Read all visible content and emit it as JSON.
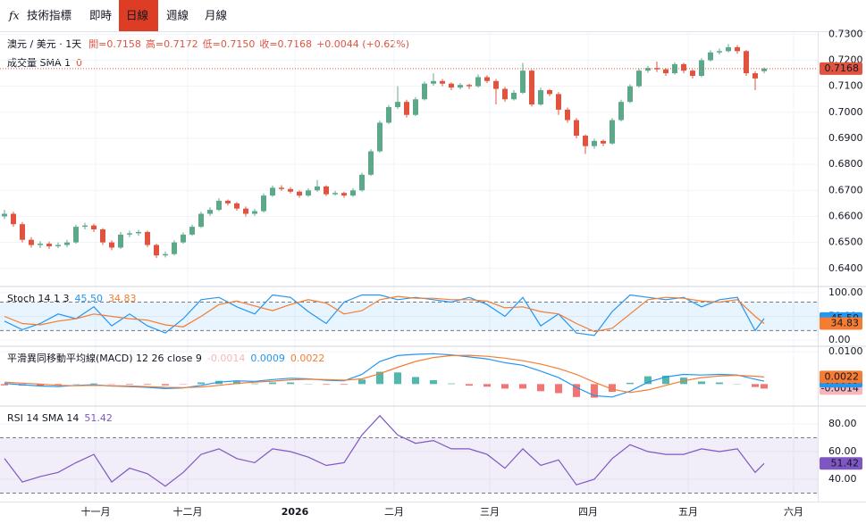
{
  "toolbar": {
    "icon": "fx",
    "items": [
      "技術指標",
      "即時",
      "日線",
      "週線",
      "月線"
    ],
    "active": 2
  },
  "chart_data": [
    {
      "type": "candlestick",
      "title": "澳元 / 美元 · 1天",
      "legend_items": [
        "開=0.7158",
        "高=0.7172",
        "低=0.7150",
        "收=0.7168",
        "+0.0044 (+0.62%)"
      ],
      "volume_legend": [
        "成交量 SMA 1",
        "0"
      ],
      "up_color": "#5ea88a",
      "down_color": "#e0533f",
      "grid": true,
      "ylim": [
        0.6334,
        0.7308
      ],
      "yticks": [
        {
          "value": 0.73,
          "label": "0.7300"
        },
        {
          "value": 0.72,
          "label": "0.7200"
        },
        {
          "value": 0.71,
          "label": "0.7100"
        },
        {
          "value": 0.7,
          "label": "0.7000"
        },
        {
          "value": 0.69,
          "label": "0.6900"
        },
        {
          "value": 0.68,
          "label": "0.6800"
        },
        {
          "value": 0.67,
          "label": "0.6700"
        },
        {
          "value": 0.66,
          "label": "0.6600"
        },
        {
          "value": 0.65,
          "label": "0.6500"
        },
        {
          "value": 0.64,
          "label": "0.6400"
        }
      ],
      "xlim": [
        -0.5,
        91
      ],
      "xticks": [
        {
          "value": 10.2,
          "label": "十一月"
        },
        {
          "value": 20.5,
          "label": "十二月"
        },
        {
          "value": 32.5,
          "label": "2026"
        },
        {
          "value": 43.6,
          "label": "二月"
        },
        {
          "value": 54.3,
          "label": "三月"
        },
        {
          "value": 65.3,
          "label": "四月"
        },
        {
          "value": 76.5,
          "label": "五月"
        },
        {
          "value": 88.3,
          "label": "六月"
        }
      ],
      "last_label": "0.7168",
      "ohlc": [
        [
          0.66,
          0.6625,
          0.659,
          0.661
        ],
        [
          0.661,
          0.6618,
          0.656,
          0.657
        ],
        [
          0.657,
          0.6578,
          0.65,
          0.651
        ],
        [
          0.651,
          0.652,
          0.648,
          0.649
        ],
        [
          0.649,
          0.6505,
          0.6478,
          0.6495
        ],
        [
          0.6495,
          0.6503,
          0.6475,
          0.6485
        ],
        [
          0.6485,
          0.65,
          0.6478,
          0.649
        ],
        [
          0.649,
          0.651,
          0.6482,
          0.65
        ],
        [
          0.65,
          0.6568,
          0.6495,
          0.656
        ],
        [
          0.656,
          0.6575,
          0.655,
          0.6565
        ],
        [
          0.6565,
          0.6572,
          0.654,
          0.655
        ],
        [
          0.655,
          0.6555,
          0.649,
          0.65
        ],
        [
          0.65,
          0.6508,
          0.647,
          0.648
        ],
        [
          0.648,
          0.654,
          0.6475,
          0.653
        ],
        [
          0.653,
          0.6545,
          0.652,
          0.6535
        ],
        [
          0.6535,
          0.6548,
          0.6525,
          0.654
        ],
        [
          0.654,
          0.6545,
          0.6482,
          0.649
        ],
        [
          0.649,
          0.6495,
          0.644,
          0.645
        ],
        [
          0.645,
          0.6465,
          0.6442,
          0.6455
        ],
        [
          0.6455,
          0.6508,
          0.645,
          0.65
        ],
        [
          0.65,
          0.6538,
          0.6495,
          0.653
        ],
        [
          0.653,
          0.6568,
          0.6525,
          0.656
        ],
        [
          0.656,
          0.6618,
          0.6555,
          0.661
        ],
        [
          0.661,
          0.6635,
          0.6602,
          0.6625
        ],
        [
          0.6625,
          0.667,
          0.662,
          0.666
        ],
        [
          0.666,
          0.6665,
          0.6642,
          0.665
        ],
        [
          0.665,
          0.6655,
          0.6622,
          0.663
        ],
        [
          0.663,
          0.6638,
          0.66,
          0.661
        ],
        [
          0.661,
          0.6628,
          0.6602,
          0.662
        ],
        [
          0.662,
          0.6688,
          0.6615,
          0.668
        ],
        [
          0.668,
          0.6718,
          0.6675,
          0.671
        ],
        [
          0.671,
          0.672,
          0.6698,
          0.6705
        ],
        [
          0.6705,
          0.6712,
          0.6688,
          0.6695
        ],
        [
          0.6695,
          0.67,
          0.6672,
          0.668
        ],
        [
          0.668,
          0.6708,
          0.6675,
          0.67
        ],
        [
          0.67,
          0.674,
          0.6695,
          0.6715
        ],
        [
          0.6715,
          0.672,
          0.6678,
          0.6685
        ],
        [
          0.6685,
          0.6698,
          0.668,
          0.669
        ],
        [
          0.669,
          0.6695,
          0.6672,
          0.668
        ],
        [
          0.668,
          0.6708,
          0.6675,
          0.67
        ],
        [
          0.67,
          0.6768,
          0.6695,
          0.676
        ],
        [
          0.676,
          0.6858,
          0.6755,
          0.685
        ],
        [
          0.685,
          0.6968,
          0.6845,
          0.696
        ],
        [
          0.696,
          0.7028,
          0.6955,
          0.702
        ],
        [
          0.702,
          0.71,
          0.7012,
          0.704
        ],
        [
          0.704,
          0.7048,
          0.698,
          0.699
        ],
        [
          0.699,
          0.7058,
          0.6985,
          0.705
        ],
        [
          0.705,
          0.7118,
          0.7045,
          0.711
        ],
        [
          0.711,
          0.715,
          0.7102,
          0.712
        ],
        [
          0.712,
          0.7128,
          0.71,
          0.711
        ],
        [
          0.711,
          0.7115,
          0.7085,
          0.7095
        ],
        [
          0.7095,
          0.7112,
          0.7088,
          0.7105
        ],
        [
          0.7105,
          0.711,
          0.709,
          0.71
        ],
        [
          0.71,
          0.7145,
          0.7095,
          0.7135
        ],
        [
          0.7135,
          0.7142,
          0.7112,
          0.712
        ],
        [
          0.712,
          0.7128,
          0.703,
          0.709
        ],
        [
          0.709,
          0.7098,
          0.704,
          0.705
        ],
        [
          0.705,
          0.7085,
          0.7045,
          0.7075
        ],
        [
          0.7075,
          0.719,
          0.707,
          0.716
        ],
        [
          0.716,
          0.7165,
          0.7022,
          0.703
        ],
        [
          0.703,
          0.7095,
          0.7025,
          0.7085
        ],
        [
          0.7085,
          0.709,
          0.7062,
          0.707
        ],
        [
          0.707,
          0.7078,
          0.699,
          0.701
        ],
        [
          0.701,
          0.7018,
          0.696,
          0.697
        ],
        [
          0.697,
          0.6978,
          0.69,
          0.691
        ],
        [
          0.691,
          0.6915,
          0.684,
          0.687
        ],
        [
          0.687,
          0.6898,
          0.686,
          0.689
        ],
        [
          0.689,
          0.6895,
          0.687,
          0.688
        ],
        [
          0.688,
          0.6978,
          0.6875,
          0.697
        ],
        [
          0.697,
          0.7048,
          0.6965,
          0.704
        ],
        [
          0.704,
          0.7108,
          0.7035,
          0.71
        ],
        [
          0.71,
          0.7168,
          0.7095,
          0.716
        ],
        [
          0.716,
          0.7178,
          0.7152,
          0.717
        ],
        [
          0.717,
          0.7195,
          0.7155,
          0.7165
        ],
        [
          0.7165,
          0.717,
          0.714,
          0.715
        ],
        [
          0.715,
          0.7192,
          0.7145,
          0.7185
        ],
        [
          0.7185,
          0.719,
          0.715,
          0.716
        ],
        [
          0.716,
          0.7165,
          0.713,
          0.714
        ],
        [
          0.714,
          0.7208,
          0.7135,
          0.72
        ],
        [
          0.72,
          0.7238,
          0.7195,
          0.723
        ],
        [
          0.723,
          0.7245,
          0.7222,
          0.7235
        ],
        [
          0.7235,
          0.7262,
          0.723,
          0.725
        ],
        [
          0.725,
          0.7258,
          0.7225,
          0.7235
        ],
        [
          0.7235,
          0.724,
          0.714,
          0.715
        ],
        [
          0.715,
          0.7158,
          0.7085,
          0.713
        ],
        [
          0.7158,
          0.7172,
          0.715,
          0.7168
        ]
      ]
    },
    {
      "type": "line",
      "title": "Stoch 14 1 3",
      "ylim": [
        -13,
        111
      ],
      "yticks": [
        {
          "value": 100,
          "label": "100.00"
        },
        {
          "value": 50,
          "label": "50.00"
        },
        {
          "value": 0,
          "label": "0.00"
        }
      ],
      "hlines": [
        80,
        20
      ],
      "band_color": "rgba(33,150,243,0.1)",
      "x": [
        0,
        2,
        4,
        6,
        8,
        10,
        12,
        14,
        16,
        18,
        20,
        22,
        24,
        26,
        28,
        30,
        32,
        34,
        36,
        38,
        40,
        42,
        44,
        46,
        48,
        50,
        52,
        54,
        56,
        58,
        60,
        62,
        64,
        66,
        68,
        70,
        72,
        74,
        76,
        78,
        80,
        82,
        84,
        85
      ],
      "series": [
        {
          "color": "#2196f3",
          "last_label": "45.50",
          "values": [
            40,
            22,
            35,
            55,
            45,
            70,
            30,
            55,
            30,
            15,
            45,
            85,
            90,
            70,
            55,
            95,
            90,
            60,
            35,
            80,
            95,
            95,
            85,
            90,
            85,
            80,
            90,
            75,
            50,
            90,
            30,
            55,
            15,
            10,
            60,
            95,
            90,
            85,
            90,
            70,
            85,
            90,
            20,
            45.5
          ]
        },
        {
          "color": "#f57c32",
          "last_label": "34.83",
          "values": [
            50,
            35,
            32,
            40,
            45,
            55,
            50,
            45,
            42,
            32,
            28,
            50,
            75,
            82,
            72,
            62,
            75,
            85,
            78,
            55,
            62,
            85,
            92,
            88,
            88,
            85,
            85,
            82,
            68,
            70,
            60,
            55,
            35,
            18,
            25,
            55,
            85,
            90,
            88,
            82,
            80,
            85,
            50,
            34.83
          ]
        }
      ]
    },
    {
      "type": "macd",
      "title": "平滑異同移動平均線(MACD) 12 26 close 9",
      "ylim": [
        -0.0068,
        0.0114
      ],
      "yticks": [
        {
          "value": 0.01,
          "label": "0.0100"
        }
      ],
      "x": [
        0,
        2,
        4,
        6,
        8,
        10,
        12,
        14,
        16,
        18,
        20,
        22,
        24,
        26,
        28,
        30,
        32,
        34,
        36,
        38,
        40,
        42,
        44,
        46,
        48,
        50,
        52,
        54,
        56,
        58,
        60,
        62,
        64,
        66,
        68,
        70,
        72,
        74,
        76,
        78,
        80,
        82,
        84,
        85
      ],
      "series": [
        {
          "kind": "histogram",
          "color": "#26a69a",
          "negative_color": "#ef5350",
          "last_label": "-0.0014",
          "badge_color": "#f7b6bd",
          "values": [
            -0.0004,
            -0.0005,
            -0.0006,
            -0.0004,
            0.0001,
            0.0002,
            -0.0001,
            -0.0002,
            -0.0002,
            -0.0004,
            -0.0001,
            0.0005,
            0.001,
            0.0008,
            0.0002,
            0.0005,
            0.0005,
            0.0001,
            -0.0002,
            -0.0002,
            0.0014,
            0.0038,
            0.0036,
            0.0022,
            0.0012,
            0.0002,
            -0.0005,
            -0.0008,
            -0.0014,
            -0.0014,
            -0.0022,
            -0.0028,
            -0.004,
            -0.0042,
            -0.0024,
            0.0004,
            0.0024,
            0.0026,
            0.002,
            0.0008,
            0.0005,
            0.0001,
            -0.0009,
            -0.0014
          ]
        },
        {
          "kind": "line",
          "color": "#2196f3",
          "last_label": "0.0009",
          "values": [
            0.0002,
            -0.0002,
            -0.0006,
            -0.0008,
            -0.0004,
            -0.0002,
            -0.0006,
            -0.0008,
            -0.001,
            -0.0014,
            -0.0012,
            -0.0004,
            0.0006,
            0.001,
            0.0008,
            0.0014,
            0.0018,
            0.0016,
            0.0012,
            0.001,
            0.003,
            0.007,
            0.0088,
            0.0092,
            0.0094,
            0.009,
            0.0084,
            0.0078,
            0.0066,
            0.0058,
            0.004,
            0.002,
            -0.001,
            -0.0036,
            -0.004,
            -0.0022,
            0.0006,
            0.0022,
            0.003,
            0.0028,
            0.003,
            0.0028,
            0.0015,
            0.0009
          ]
        },
        {
          "kind": "line",
          "color": "#f57c32",
          "last_label": "0.0022",
          "values": [
            0.0006,
            0.0003,
            0.0,
            -0.0004,
            -0.0005,
            -0.0004,
            -0.0005,
            -0.0006,
            -0.0008,
            -0.001,
            -0.0011,
            -0.0009,
            -0.0004,
            0.0002,
            0.0006,
            0.0009,
            0.0013,
            0.0015,
            0.0014,
            0.0012,
            0.0016,
            0.0032,
            0.0052,
            0.007,
            0.0082,
            0.0088,
            0.0089,
            0.0086,
            0.008,
            0.0072,
            0.0062,
            0.0048,
            0.003,
            0.0006,
            -0.0016,
            -0.0026,
            -0.0018,
            -0.0004,
            0.001,
            0.002,
            0.0025,
            0.0027,
            0.0024,
            0.0022
          ]
        }
      ]
    },
    {
      "type": "line",
      "title": "RSI 14 SMA 14",
      "ylim": [
        24.5,
        92.3
      ],
      "yticks": [
        {
          "value": 80,
          "label": "80.00"
        },
        {
          "value": 60,
          "label": "60.00"
        },
        {
          "value": 40,
          "label": "40.00"
        }
      ],
      "hlines": [
        70,
        30
      ],
      "band_color": "rgba(126,87,194,0.1)",
      "x": [
        0,
        2,
        4,
        6,
        8,
        10,
        12,
        14,
        16,
        18,
        20,
        22,
        24,
        26,
        28,
        30,
        32,
        34,
        36,
        38,
        40,
        42,
        44,
        46,
        48,
        50,
        52,
        54,
        56,
        58,
        60,
        62,
        64,
        66,
        68,
        70,
        72,
        74,
        76,
        78,
        80,
        82,
        84,
        85
      ],
      "series": [
        {
          "color": "#7e57c2",
          "last_label": "51.42",
          "values": [
            55,
            38,
            42,
            45,
            52,
            58,
            38,
            48,
            44,
            35,
            45,
            58,
            62,
            55,
            52,
            62,
            60,
            56,
            50,
            52,
            72,
            86,
            72,
            66,
            68,
            62,
            62,
            58,
            48,
            62,
            50,
            54,
            36,
            40,
            55,
            65,
            60,
            58,
            58,
            62,
            60,
            62,
            45,
            51.42
          ]
        }
      ]
    }
  ]
}
